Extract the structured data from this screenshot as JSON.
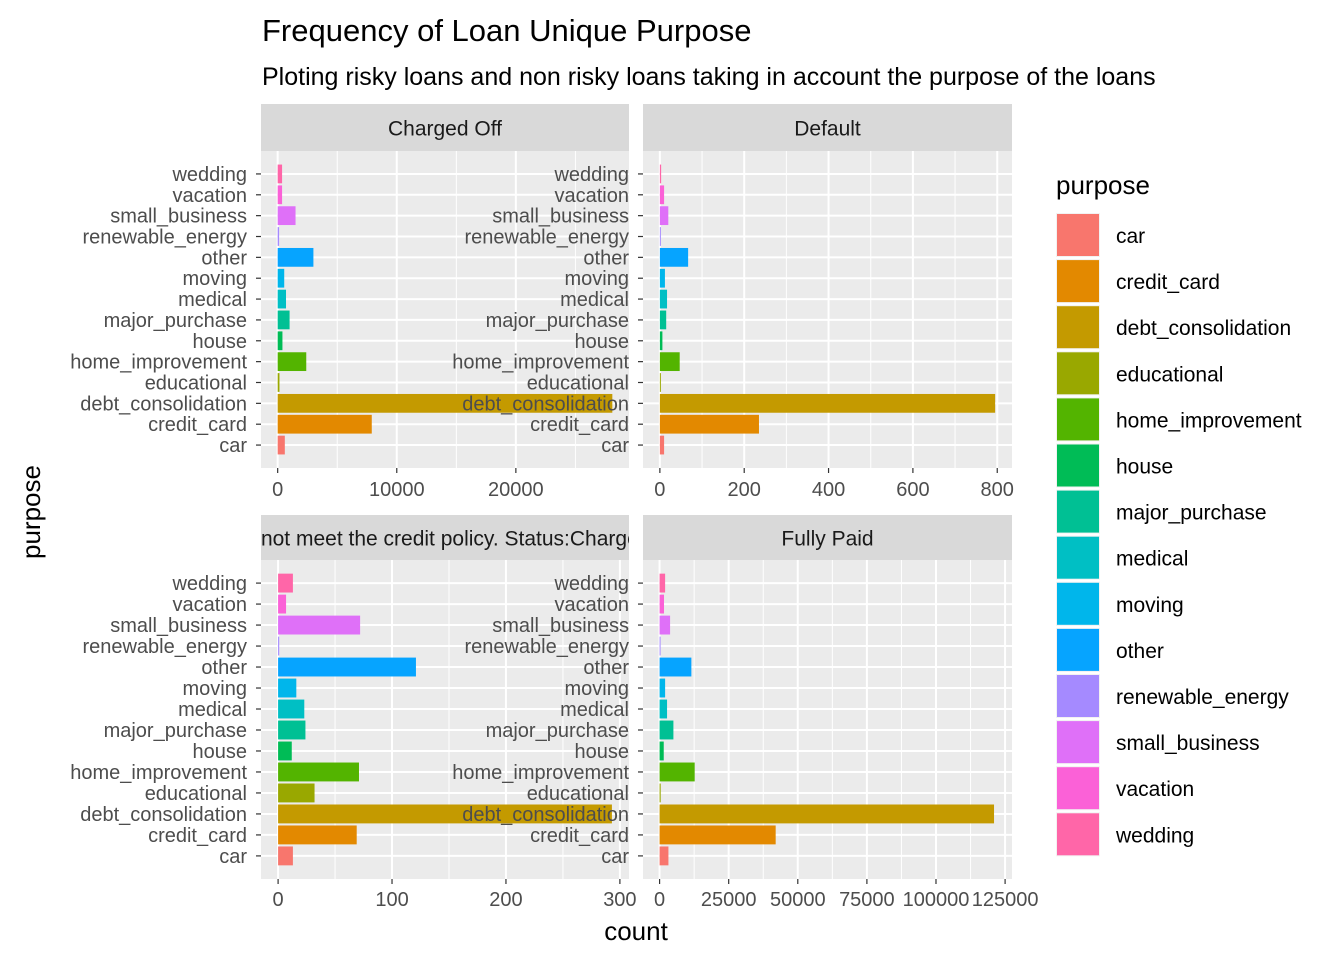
{
  "chart_data": {
    "type": "bar",
    "orientation": "horizontal",
    "title": "Frequency of Loan Unique  Purpose",
    "subtitle": "Ploting risky loans and non risky loans taking in account the purpose of the loans",
    "xlabel": "count",
    "ylabel": "purpose",
    "categories": [
      "car",
      "credit_card",
      "debt_consolidation",
      "educational",
      "home_improvement",
      "house",
      "major_purchase",
      "medical",
      "moving",
      "other",
      "renewable_energy",
      "small_business",
      "vacation",
      "wedding"
    ],
    "colors": [
      "#F8766D",
      "#E38900",
      "#C49A00",
      "#99A800",
      "#53B400",
      "#00BC56",
      "#00C094",
      "#00BFC4",
      "#00B6EB",
      "#06A4FF",
      "#A58AFF",
      "#DF70F8",
      "#FB61D7",
      "#FF66A8"
    ],
    "legend": {
      "title": "purpose",
      "position": "right"
    },
    "grid": true,
    "facets": [
      {
        "label": "Charged Off",
        "values": [
          600,
          7900,
          28100,
          150,
          2400,
          400,
          1000,
          700,
          550,
          3000,
          120,
          1500,
          370,
          370
        ],
        "xlim": [
          -1400,
          29500
        ],
        "xticks": [
          0,
          10000,
          20000
        ],
        "xtick_labels": [
          "0",
          "10000",
          "20000"
        ]
      },
      {
        "label": "Default",
        "values": [
          10,
          235,
          795,
          1,
          47,
          6,
          15,
          17,
          12,
          67,
          1,
          20,
          10,
          3
        ],
        "xlim": [
          -40,
          835
        ],
        "xticks": [
          0,
          200,
          400,
          600,
          800
        ],
        "xtick_labels": [
          "0",
          "200",
          "400",
          "600",
          "800"
        ]
      },
      {
        "label": "Does not meet the credit policy. Status:Charged Off",
        "values": [
          13,
          69,
          293,
          32,
          71,
          12,
          24,
          23,
          16,
          121,
          1,
          72,
          7,
          13
        ],
        "xlim": [
          -15,
          308
        ],
        "xticks": [
          0,
          100,
          200,
          300
        ],
        "xtick_labels": [
          "0",
          "100",
          "200",
          "300"
        ]
      },
      {
        "label": "Fully Paid",
        "values": [
          3200,
          42000,
          121000,
          400,
          12700,
          1500,
          5000,
          2700,
          2000,
          11500,
          350,
          3800,
          1600,
          2000
        ],
        "xlim": [
          -6000,
          127500
        ],
        "xticks": [
          0,
          25000,
          50000,
          75000,
          100000,
          125000
        ],
        "xtick_labels": [
          "0",
          "25000",
          "50000",
          "75000",
          "100000",
          "125000"
        ]
      }
    ]
  }
}
